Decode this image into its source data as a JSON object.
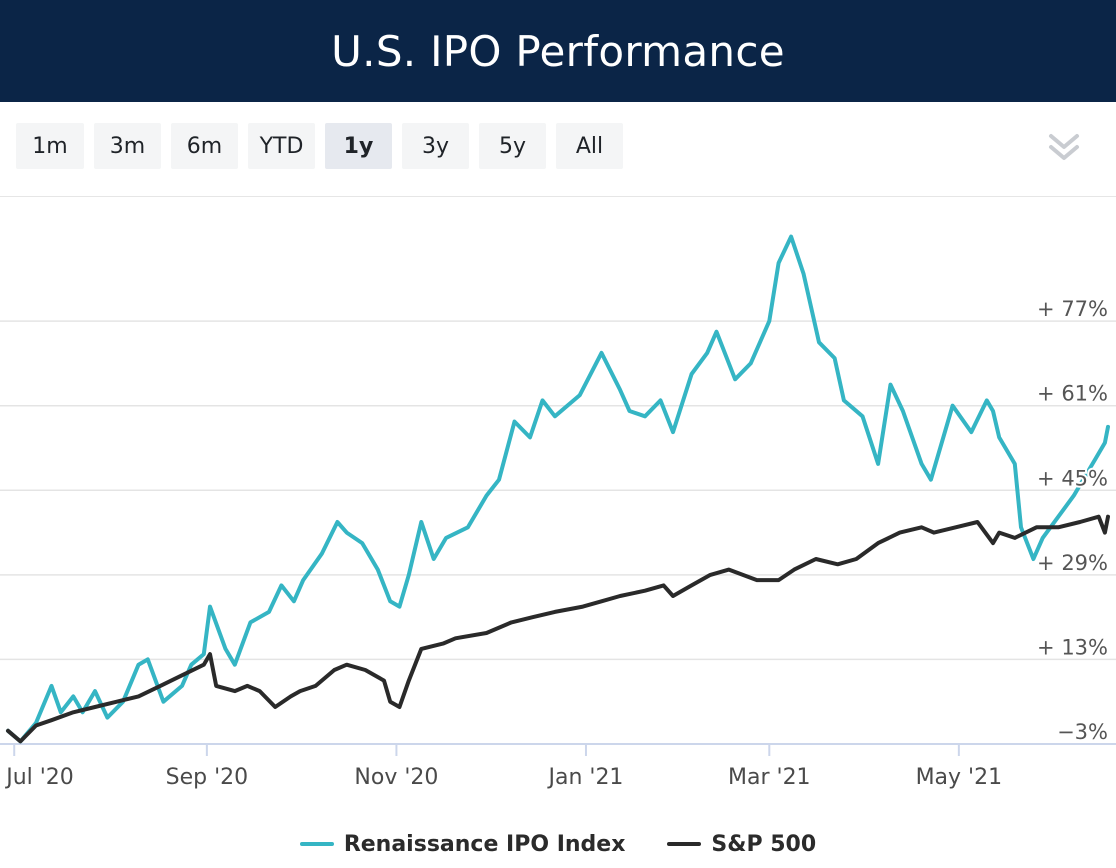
{
  "header": {
    "title": "U.S. IPO Performance"
  },
  "range_buttons": [
    {
      "label": "1m",
      "selected": false
    },
    {
      "label": "3m",
      "selected": false
    },
    {
      "label": "6m",
      "selected": false
    },
    {
      "label": "YTD",
      "selected": false
    },
    {
      "label": "1y",
      "selected": true
    },
    {
      "label": "3y",
      "selected": false
    },
    {
      "label": "5y",
      "selected": false
    },
    {
      "label": "All",
      "selected": false
    }
  ],
  "colors": {
    "header_bg": "#0b2547",
    "ipo_series": "#35b5c4",
    "sp500_series": "#2a2a2a",
    "gridline": "#e4e4e4"
  },
  "icons": {
    "collapse": "double-chevron-down-icon"
  },
  "chart_data": {
    "type": "line",
    "x_labels": [
      "Jul '20",
      "Sep '20",
      "Nov '20",
      "Jan '21",
      "Mar '21",
      "May '21"
    ],
    "x_label_dates": [
      "2020-07-01",
      "2020-09-01",
      "2020-11-01",
      "2021-01-01",
      "2021-03-01",
      "2021-05-01"
    ],
    "x_range": [
      "2020-06-29",
      "2021-06-18"
    ],
    "y_ticks": [
      {
        "value": -3,
        "label": "−3%"
      },
      {
        "value": 13,
        "label": "+ 13%"
      },
      {
        "value": 29,
        "label": "+ 29%"
      },
      {
        "value": 45,
        "label": "+ 45%"
      },
      {
        "value": 61,
        "label": "+ 61%"
      },
      {
        "value": 77,
        "label": "+ 77%"
      }
    ],
    "ylim": [
      -3,
      95
    ],
    "grid": true,
    "legend_position": "bottom",
    "series": [
      {
        "name": "Renaissance IPO Index",
        "color": "#35b5c4",
        "points": [
          [
            "2020-06-29",
            -0.5
          ],
          [
            "2020-07-03",
            -2.5
          ],
          [
            "2020-07-08",
            1
          ],
          [
            "2020-07-13",
            8
          ],
          [
            "2020-07-16",
            3
          ],
          [
            "2020-07-20",
            6
          ],
          [
            "2020-07-23",
            3
          ],
          [
            "2020-07-27",
            7
          ],
          [
            "2020-07-31",
            2
          ],
          [
            "2020-08-05",
            5
          ],
          [
            "2020-08-10",
            12
          ],
          [
            "2020-08-13",
            13
          ],
          [
            "2020-08-18",
            5
          ],
          [
            "2020-08-24",
            8
          ],
          [
            "2020-08-27",
            12
          ],
          [
            "2020-08-31",
            14
          ],
          [
            "2020-09-02",
            23
          ],
          [
            "2020-09-07",
            15
          ],
          [
            "2020-09-10",
            12
          ],
          [
            "2020-09-15",
            20
          ],
          [
            "2020-09-21",
            22
          ],
          [
            "2020-09-25",
            27
          ],
          [
            "2020-09-29",
            24
          ],
          [
            "2020-10-02",
            28
          ],
          [
            "2020-10-08",
            33
          ],
          [
            "2020-10-13",
            39
          ],
          [
            "2020-10-16",
            37
          ],
          [
            "2020-10-21",
            35
          ],
          [
            "2020-10-26",
            30
          ],
          [
            "2020-10-30",
            24
          ],
          [
            "2020-11-02",
            23
          ],
          [
            "2020-11-05",
            29
          ],
          [
            "2020-11-09",
            39
          ],
          [
            "2020-11-13",
            32
          ],
          [
            "2020-11-17",
            36
          ],
          [
            "2020-11-24",
            38
          ],
          [
            "2020-11-30",
            44
          ],
          [
            "2020-12-04",
            47
          ],
          [
            "2020-12-09",
            58
          ],
          [
            "2020-12-14",
            55
          ],
          [
            "2020-12-18",
            62
          ],
          [
            "2020-12-22",
            59
          ],
          [
            "2020-12-30",
            63
          ],
          [
            "2021-01-06",
            71
          ],
          [
            "2021-01-12",
            64
          ],
          [
            "2021-01-15",
            60
          ],
          [
            "2021-01-20",
            59
          ],
          [
            "2021-01-25",
            62
          ],
          [
            "2021-01-29",
            56
          ],
          [
            "2021-02-04",
            67
          ],
          [
            "2021-02-09",
            71
          ],
          [
            "2021-02-12",
            75
          ],
          [
            "2021-02-18",
            66
          ],
          [
            "2021-02-23",
            69
          ],
          [
            "2021-03-01",
            77
          ],
          [
            "2021-03-04",
            88
          ],
          [
            "2021-03-08",
            93
          ],
          [
            "2021-03-12",
            86
          ],
          [
            "2021-03-17",
            73
          ],
          [
            "2021-03-22",
            70
          ],
          [
            "2021-03-25",
            62
          ],
          [
            "2021-03-31",
            59
          ],
          [
            "2021-04-05",
            50
          ],
          [
            "2021-04-09",
            65
          ],
          [
            "2021-04-13",
            60
          ],
          [
            "2021-04-19",
            50
          ],
          [
            "2021-04-22",
            47
          ],
          [
            "2021-04-29",
            61
          ],
          [
            "2021-05-05",
            56
          ],
          [
            "2021-05-10",
            62
          ],
          [
            "2021-05-12",
            60
          ],
          [
            "2021-05-14",
            55
          ],
          [
            "2021-05-19",
            50
          ],
          [
            "2021-05-21",
            38
          ],
          [
            "2021-05-25",
            32
          ],
          [
            "2021-05-28",
            36
          ],
          [
            "2021-06-02",
            40
          ],
          [
            "2021-06-07",
            44
          ],
          [
            "2021-06-10",
            47
          ],
          [
            "2021-06-14",
            51
          ],
          [
            "2021-06-17",
            54
          ],
          [
            "2021-06-18",
            57
          ]
        ]
      },
      {
        "name": "S&P 500",
        "color": "#2a2a2a",
        "points": [
          [
            "2020-06-29",
            -0.5
          ],
          [
            "2020-07-03",
            -2.5
          ],
          [
            "2020-07-08",
            0.5
          ],
          [
            "2020-07-13",
            1.5
          ],
          [
            "2020-07-20",
            3
          ],
          [
            "2020-07-27",
            4
          ],
          [
            "2020-08-03",
            5
          ],
          [
            "2020-08-10",
            6
          ],
          [
            "2020-08-17",
            8
          ],
          [
            "2020-08-24",
            10
          ],
          [
            "2020-08-31",
            12
          ],
          [
            "2020-09-02",
            14
          ],
          [
            "2020-09-04",
            8
          ],
          [
            "2020-09-10",
            7
          ],
          [
            "2020-09-14",
            8
          ],
          [
            "2020-09-18",
            7
          ],
          [
            "2020-09-23",
            4
          ],
          [
            "2020-09-28",
            6
          ],
          [
            "2020-10-01",
            7
          ],
          [
            "2020-10-06",
            8
          ],
          [
            "2020-10-12",
            11
          ],
          [
            "2020-10-16",
            12
          ],
          [
            "2020-10-22",
            11
          ],
          [
            "2020-10-28",
            9
          ],
          [
            "2020-10-30",
            5
          ],
          [
            "2020-11-02",
            4
          ],
          [
            "2020-11-05",
            9
          ],
          [
            "2020-11-09",
            15
          ],
          [
            "2020-11-16",
            16
          ],
          [
            "2020-11-20",
            17
          ],
          [
            "2020-11-30",
            18
          ],
          [
            "2020-12-08",
            20
          ],
          [
            "2020-12-15",
            21
          ],
          [
            "2020-12-22",
            22
          ],
          [
            "2020-12-31",
            23
          ],
          [
            "2021-01-06",
            24
          ],
          [
            "2021-01-12",
            25
          ],
          [
            "2021-01-20",
            26
          ],
          [
            "2021-01-26",
            27
          ],
          [
            "2021-01-29",
            25
          ],
          [
            "2021-02-04",
            27
          ],
          [
            "2021-02-10",
            29
          ],
          [
            "2021-02-16",
            30
          ],
          [
            "2021-02-25",
            28
          ],
          [
            "2021-03-04",
            28
          ],
          [
            "2021-03-09",
            30
          ],
          [
            "2021-03-16",
            32
          ],
          [
            "2021-03-23",
            31
          ],
          [
            "2021-03-29",
            32
          ],
          [
            "2021-04-05",
            35
          ],
          [
            "2021-04-12",
            37
          ],
          [
            "2021-04-19",
            38
          ],
          [
            "2021-04-23",
            37
          ],
          [
            "2021-04-30",
            38
          ],
          [
            "2021-05-07",
            39
          ],
          [
            "2021-05-12",
            35
          ],
          [
            "2021-05-14",
            37
          ],
          [
            "2021-05-19",
            36
          ],
          [
            "2021-05-26",
            38
          ],
          [
            "2021-06-02",
            38
          ],
          [
            "2021-06-09",
            39
          ],
          [
            "2021-06-15",
            40
          ],
          [
            "2021-06-17",
            37
          ],
          [
            "2021-06-18",
            40
          ]
        ]
      }
    ]
  }
}
